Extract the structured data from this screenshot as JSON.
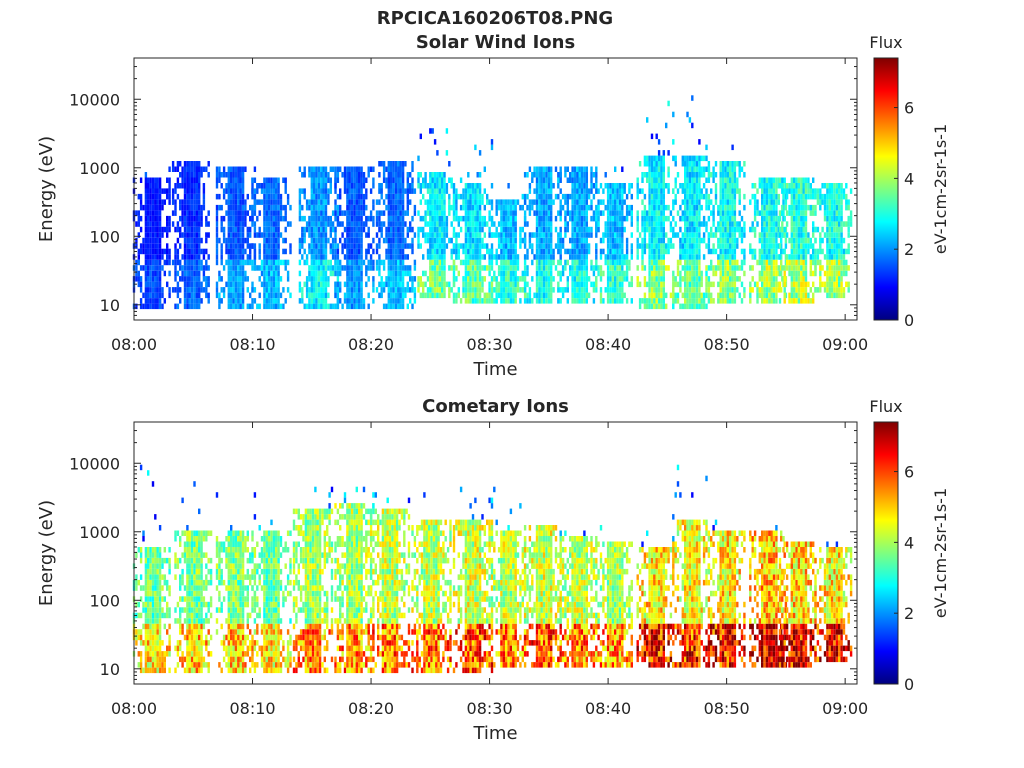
{
  "figure_title": "RPCICA160206T08.PNG",
  "colors": {
    "jet": [
      "#00007f",
      "#0000ff",
      "#007fff",
      "#00ffff",
      "#7fff7f",
      "#ffff00",
      "#ff7f00",
      "#ff0000",
      "#7f0000"
    ],
    "axis": "#262626",
    "background": "#ffffff"
  },
  "chart_data": [
    {
      "type": "heatmap",
      "title": "Solar Wind Ions",
      "xlabel": "Time",
      "ylabel": "Energy (eV)",
      "x_ticks": [
        "08:00",
        "08:10",
        "08:20",
        "08:30",
        "08:40",
        "08:50",
        "09:00"
      ],
      "x_range": [
        "08:00",
        "09:01"
      ],
      "y_scale": "log",
      "y_ticks": [
        "10",
        "100",
        "1000",
        "10000"
      ],
      "y_range": [
        6,
        40000
      ],
      "colorbar": {
        "label": "Flux",
        "units": "eV-1cm-2sr-1s-1",
        "ticks": [
          "0",
          "2",
          "4",
          "6"
        ],
        "range": [
          0,
          7.4
        ]
      },
      "series": [
        {
          "t": 1.5,
          "e_hi": 700,
          "e_lo": 8,
          "flux": 1.4,
          "n_hi": 900
        },
        {
          "t": 4.8,
          "e_hi": 1200,
          "e_lo": 8,
          "flux": 1.6,
          "n_hi": 1200
        },
        {
          "t": 8.5,
          "e_hi": 900,
          "e_lo": 8,
          "flux": 2.0,
          "n_hi": 1000
        },
        {
          "t": 11.5,
          "e_hi": 700,
          "e_lo": 8,
          "flux": 2.2,
          "n_hi": 900
        },
        {
          "t": 15.5,
          "e_hi": 1000,
          "e_lo": 8,
          "flux": 2.6,
          "n_hi": 1000
        },
        {
          "t": 18.5,
          "e_hi": 1000,
          "e_lo": 8,
          "flux": 2.0,
          "n_hi": 1000
        },
        {
          "t": 22.0,
          "e_hi": 1200,
          "e_lo": 8,
          "flux": 2.2,
          "n_hi": 1200
        },
        {
          "t": 25.5,
          "e_hi": 800,
          "e_lo": 12,
          "flux": 3.4,
          "n_hi": 4000
        },
        {
          "t": 28.5,
          "e_hi": 600,
          "e_lo": 10,
          "flux": 3.3,
          "n_hi": 3000
        },
        {
          "t": 31.5,
          "e_hi": 300,
          "e_lo": 10,
          "flux": 3.0,
          "n_hi": 600
        },
        {
          "t": 34.5,
          "e_hi": 1000,
          "e_lo": 10,
          "flux": 2.8,
          "n_hi": 1000
        },
        {
          "t": 37.5,
          "e_hi": 1000,
          "e_lo": 10,
          "flux": 2.8,
          "n_hi": 900
        },
        {
          "t": 40.5,
          "e_hi": 600,
          "e_lo": 10,
          "flux": 3.0,
          "n_hi": 900
        },
        {
          "t": 44.0,
          "e_hi": 1500,
          "e_lo": 8,
          "flux": 3.6,
          "n_hi": 8000
        },
        {
          "t": 47.0,
          "e_hi": 1500,
          "e_lo": 8,
          "flux": 3.4,
          "n_hi": 10000
        },
        {
          "t": 50.0,
          "e_hi": 1200,
          "e_lo": 10,
          "flux": 3.7,
          "n_hi": 2000
        },
        {
          "t": 53.5,
          "e_hi": 700,
          "e_lo": 10,
          "flux": 3.8,
          "n_hi": 900
        },
        {
          "t": 56.0,
          "e_hi": 700,
          "e_lo": 10,
          "flux": 3.9,
          "n_hi": 1000
        },
        {
          "t": 59.0,
          "e_hi": 600,
          "e_lo": 12,
          "flux": 3.8,
          "n_hi": 900
        }
      ]
    },
    {
      "type": "heatmap",
      "title": "Cometary Ions",
      "xlabel": "Time",
      "ylabel": "Energy (eV)",
      "x_ticks": [
        "08:00",
        "08:10",
        "08:20",
        "08:30",
        "08:40",
        "08:50",
        "09:00"
      ],
      "x_range": [
        "08:00",
        "09:01"
      ],
      "y_scale": "log",
      "y_ticks": [
        "10",
        "100",
        "1000",
        "10000"
      ],
      "y_range": [
        6,
        40000
      ],
      "colorbar": {
        "label": "Flux",
        "units": "eV-1cm-2sr-1s-1",
        "ticks": [
          "0",
          "2",
          "4",
          "6"
        ],
        "range": [
          0,
          7.4
        ]
      },
      "series": [
        {
          "t": 1.5,
          "e_hi": 600,
          "e_lo": 8,
          "flux": 4.6,
          "n_hi": 8000
        },
        {
          "t": 5.0,
          "e_hi": 900,
          "e_lo": 8,
          "flux": 4.8,
          "n_hi": 6000
        },
        {
          "t": 8.5,
          "e_hi": 1000,
          "e_lo": 8,
          "flux": 4.8,
          "n_hi": 4000
        },
        {
          "t": 11.5,
          "e_hi": 1000,
          "e_lo": 8,
          "flux": 4.6,
          "n_hi": 1500
        },
        {
          "t": 15.0,
          "e_hi": 2000,
          "e_lo": 8,
          "flux": 5.2,
          "n_hi": 4000
        },
        {
          "t": 18.5,
          "e_hi": 2500,
          "e_lo": 8,
          "flux": 5.2,
          "n_hi": 5000
        },
        {
          "t": 21.5,
          "e_hi": 2000,
          "e_lo": 8,
          "flux": 5.4,
          "n_hi": 5000
        },
        {
          "t": 25.0,
          "e_hi": 1500,
          "e_lo": 8,
          "flux": 5.4,
          "n_hi": 4000
        },
        {
          "t": 28.5,
          "e_hi": 1500,
          "e_lo": 8,
          "flux": 5.6,
          "n_hi": 4000
        },
        {
          "t": 31.5,
          "e_hi": 1000,
          "e_lo": 10,
          "flux": 5.4,
          "n_hi": 4500
        },
        {
          "t": 34.5,
          "e_hi": 1200,
          "e_lo": 10,
          "flux": 5.6,
          "n_hi": 1500
        },
        {
          "t": 37.5,
          "e_hi": 800,
          "e_lo": 10,
          "flux": 5.4,
          "n_hi": 1200
        },
        {
          "t": 40.5,
          "e_hi": 700,
          "e_lo": 10,
          "flux": 5.2,
          "n_hi": 1200
        },
        {
          "t": 44.0,
          "e_hi": 500,
          "e_lo": 10,
          "flux": 6.2,
          "n_hi": 1000
        },
        {
          "t": 47.0,
          "e_hi": 1500,
          "e_lo": 10,
          "flux": 6.0,
          "n_hi": 9000
        },
        {
          "t": 50.0,
          "e_hi": 1000,
          "e_lo": 10,
          "flux": 6.2,
          "n_hi": 1500
        },
        {
          "t": 53.5,
          "e_hi": 900,
          "e_lo": 10,
          "flux": 6.6,
          "n_hi": 1200
        },
        {
          "t": 56.0,
          "e_hi": 700,
          "e_lo": 10,
          "flux": 6.4,
          "n_hi": 900
        },
        {
          "t": 59.0,
          "e_hi": 500,
          "e_lo": 12,
          "flux": 6.2,
          "n_hi": 800
        }
      ]
    }
  ]
}
